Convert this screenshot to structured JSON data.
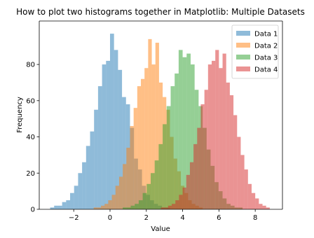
{
  "chart_data": {
    "type": "histogram",
    "title": "How to plot two histograms together in Matplotlib: Multiple Datasets",
    "xlabel": "Value",
    "ylabel": "Frequency",
    "xlim": [
      -3.9,
      9.5
    ],
    "ylim": [
      0,
      104
    ],
    "xticks": [
      {
        "value": -2,
        "label": "−2"
      },
      0,
      2,
      4,
      6,
      8
    ],
    "yticks": [
      0,
      20,
      40,
      60,
      80
    ],
    "legend": "upper right",
    "opacity": 0.5,
    "series": [
      {
        "name": "Data 1",
        "color": "#1f77b4",
        "bins": [
          -3.3,
          -3.08,
          -2.86,
          -2.64,
          -2.42,
          -2.2,
          -1.98,
          -1.76,
          -1.54,
          -1.32,
          -1.1,
          -0.88,
          -0.66,
          -0.44,
          -0.22,
          0,
          0.22,
          0.44,
          0.66,
          0.88,
          1.1,
          1.32,
          1.54,
          1.76,
          1.98,
          2.2,
          2.42,
          2.64,
          2.86,
          3.08,
          3.3
        ],
        "values": [
          1,
          2,
          2,
          4,
          5,
          9,
          13,
          20,
          26,
          35,
          43,
          55,
          68,
          80,
          82,
          97,
          88,
          77,
          62,
          58,
          45,
          28,
          22,
          13,
          8,
          5,
          3,
          2,
          1,
          1
        ]
      },
      {
        "name": "Data 2",
        "color": "#ff7f0e",
        "bins": [
          -0.9,
          -0.7,
          -0.5,
          -0.3,
          -0.1,
          0.1,
          0.3,
          0.5,
          0.7,
          0.9,
          1.1,
          1.3,
          1.5,
          1.7,
          1.9,
          2.1,
          2.3,
          2.5,
          2.7,
          2.9,
          3.1,
          3.3,
          3.5,
          3.7,
          3.9,
          4.1,
          4.3,
          4.5,
          4.7,
          4.9,
          5.1
        ],
        "values": [
          1,
          1,
          2,
          3,
          5,
          8,
          13,
          18,
          25,
          34,
          46,
          56,
          68,
          72,
          78,
          94,
          80,
          92,
          70,
          62,
          55,
          40,
          28,
          21,
          13,
          9,
          5,
          3,
          2,
          1
        ]
      },
      {
        "name": "Data 3",
        "color": "#2ca02c",
        "bins": [
          0.7,
          0.92,
          1.14,
          1.36,
          1.58,
          1.8,
          2.02,
          2.24,
          2.46,
          2.68,
          2.9,
          3.12,
          3.34,
          3.56,
          3.78,
          4,
          4.22,
          4.44,
          4.66,
          4.88,
          5.1,
          5.32,
          5.54,
          5.76,
          5.98,
          6.2,
          6.42,
          6.64,
          6.86,
          7.08,
          7.3
        ],
        "values": [
          1,
          1,
          2,
          3,
          5,
          9,
          14,
          20,
          27,
          36,
          47,
          57,
          68,
          75,
          88,
          84,
          86,
          80,
          66,
          57,
          45,
          33,
          24,
          15,
          10,
          6,
          3,
          2,
          1,
          1
        ]
      },
      {
        "name": "Data 4",
        "color": "#d62728",
        "bins": [
          2.8,
          3.0,
          3.2,
          3.4,
          3.6,
          3.8,
          4.0,
          4.2,
          4.4,
          4.6,
          4.8,
          5.0,
          5.2,
          5.4,
          5.6,
          5.8,
          6.0,
          6.2,
          6.4,
          6.6,
          6.8,
          7.0,
          7.2,
          7.4,
          7.6,
          7.8,
          8.0,
          8.2,
          8.4,
          8.6,
          8.8
        ],
        "values": [
          1,
          1,
          2,
          3,
          5,
          8,
          12,
          19,
          26,
          36,
          45,
          58,
          66,
          80,
          82,
          88,
          78,
          86,
          70,
          63,
          52,
          40,
          30,
          22,
          14,
          9,
          6,
          3,
          2,
          1
        ]
      }
    ]
  }
}
